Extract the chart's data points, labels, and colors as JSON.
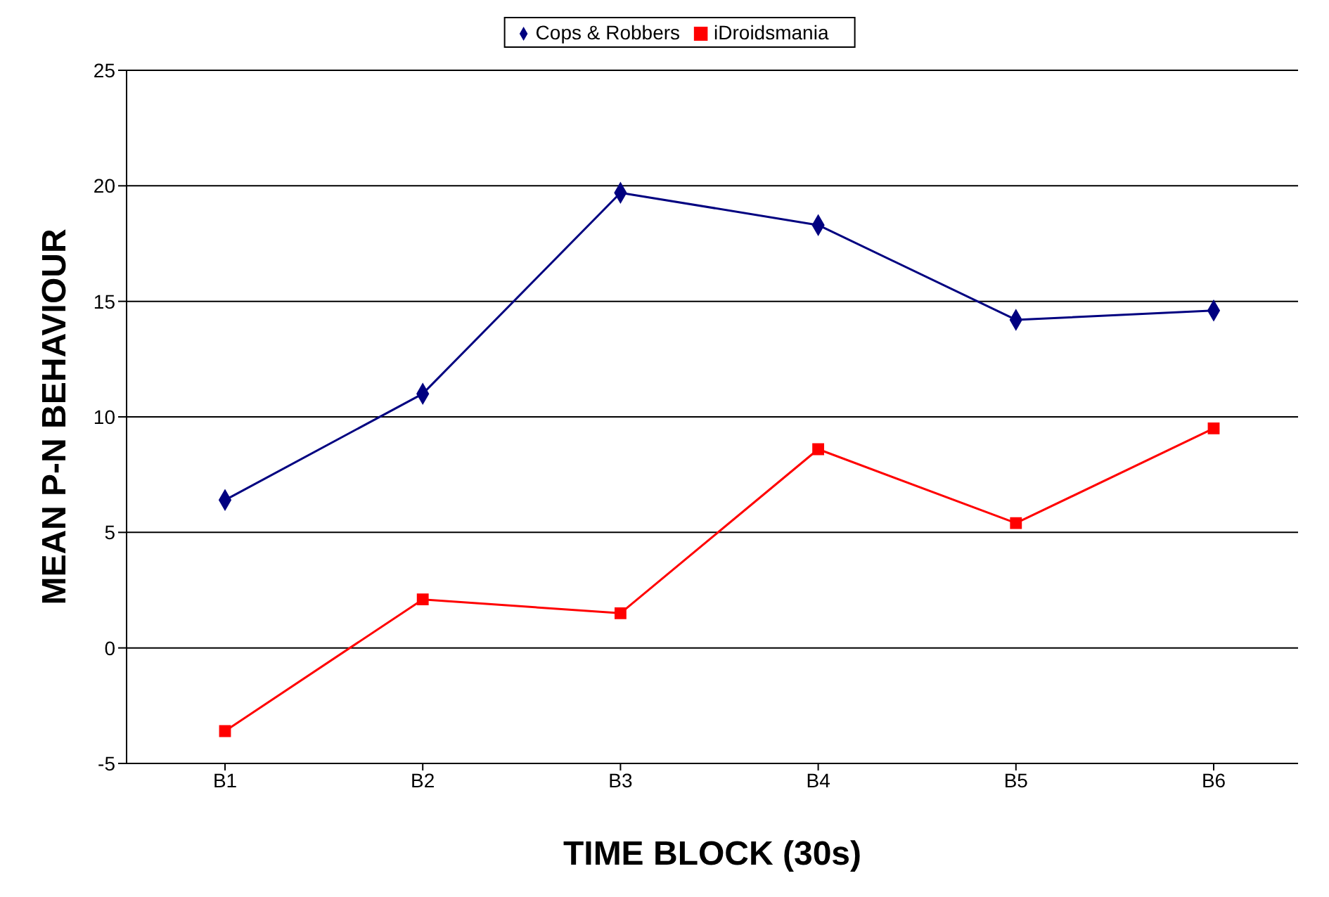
{
  "chart_data": {
    "type": "line",
    "xlabel": "TIME BLOCK (30s)",
    "ylabel": "MEAN P-N BEHAVIOUR",
    "categories": [
      "B1",
      "B2",
      "B3",
      "B4",
      "B5",
      "B6"
    ],
    "series": [
      {
        "name": "Cops & Robbers",
        "color": "#000080",
        "marker": "diamond",
        "values": [
          6.4,
          11.0,
          19.7,
          18.3,
          14.2,
          14.6
        ]
      },
      {
        "name": "iDroidsmania",
        "color": "#ff0000",
        "marker": "square",
        "values": [
          -3.6,
          2.1,
          1.5,
          8.6,
          5.4,
          9.5
        ]
      }
    ],
    "ylim": [
      -5,
      25
    ],
    "yticks": [
      -5,
      0,
      5,
      10,
      15,
      20,
      25
    ],
    "grid": "y",
    "legend": "top"
  }
}
